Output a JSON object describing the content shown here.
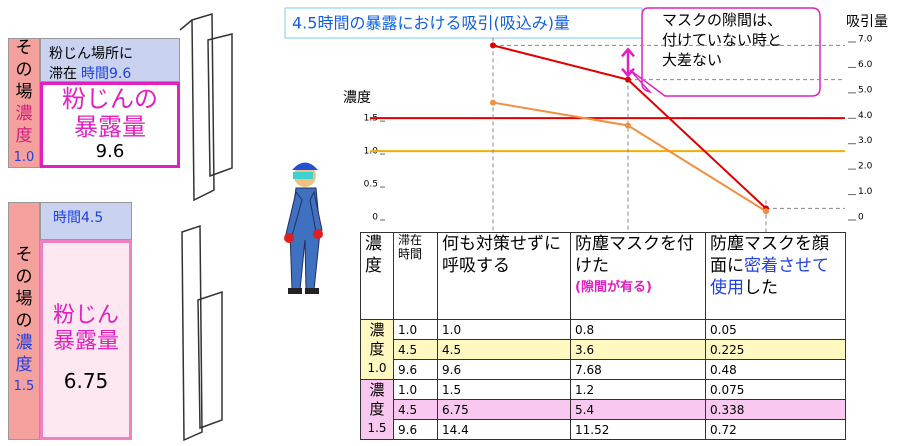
{
  "panels": [
    {
      "side": [
        "その場",
        "濃度",
        "1.0"
      ],
      "header": [
        "粉じん場所に",
        "滞在",
        "時間9.6"
      ],
      "label": [
        "粉じんの",
        "暴露量"
      ],
      "value": "9.6"
    },
    {
      "side": [
        "その場の",
        "濃度",
        "1.5"
      ],
      "header": [
        "時間4.5"
      ],
      "label": [
        "粉じん",
        "暴露量"
      ],
      "value": "6.75"
    }
  ],
  "callout": [
    "マスクの隙間は、",
    "付けていない時と",
    "大差ない"
  ],
  "chart_data": {
    "type": "line",
    "title": "4.5時間の暴露における吸引(吸込み)量",
    "y_label": "濃度",
    "y2_label": "吸引量",
    "categories": [
      null,
      null,
      null
    ],
    "ylim": [
      0,
      2.7
    ],
    "yticks": [
      0,
      0.5,
      {
        "value": 1,
        "label": "1.0"
      },
      1.5
    ],
    "y2lim": [
      0,
      7
    ],
    "y2ticks": [
      0,
      {
        "value": 1,
        "label": "1.0"
      },
      {
        "value": 2,
        "label": "2.0"
      },
      {
        "value": 3,
        "label": "3.0"
      },
      {
        "value": 4,
        "label": "4.0"
      },
      {
        "value": 5,
        "label": "5.0"
      },
      {
        "value": 6,
        "label": "6.0"
      },
      {
        "value": 7,
        "label": "7.0"
      }
    ],
    "levels": [
      {
        "value": 1.5,
        "color": "#e00000"
      },
      {
        "value": 1,
        "color": "#f0b000"
      }
    ],
    "series": [
      {
        "color": "#e00000",
        "values": [
          6.75,
          5.4,
          0.338
        ],
        "axis": "y2"
      },
      {
        "color": "#f09040",
        "values": [
          4.5,
          3.6,
          0.225
        ],
        "axis": "y2"
      }
    ]
  },
  "table": {
    "header": [
      [
        "濃度"
      ],
      [
        "滞在",
        "時間"
      ],
      [
        "何も対策せず",
        "に呼吸する"
      ],
      [
        "防塵マスクを",
        "付けた",
        "(隙間が有る)"
      ],
      [
        "防塵マスクを",
        "顔面に",
        "密着さ",
        "せて使用",
        "した"
      ]
    ],
    "groups": [
      {
        "label": [
          "濃",
          "度",
          "1.0"
        ],
        "rows": [
          [
            "1.0",
            "1.0",
            "0.8",
            "0.05"
          ],
          [
            "4.5",
            "4.5",
            "3.6",
            "0.225"
          ],
          [
            "9.6",
            "9.6",
            "7.68",
            "0.48"
          ]
        ]
      },
      {
        "label": [
          "濃",
          "度",
          "1.5"
        ],
        "rows": [
          [
            "1.0",
            "1.5",
            "1.2",
            "0.075"
          ],
          [
            "4.5",
            "6.75",
            "5.4",
            "0.338"
          ],
          [
            "9.6",
            "14.4",
            "11.52",
            "0.72"
          ]
        ]
      }
    ]
  }
}
